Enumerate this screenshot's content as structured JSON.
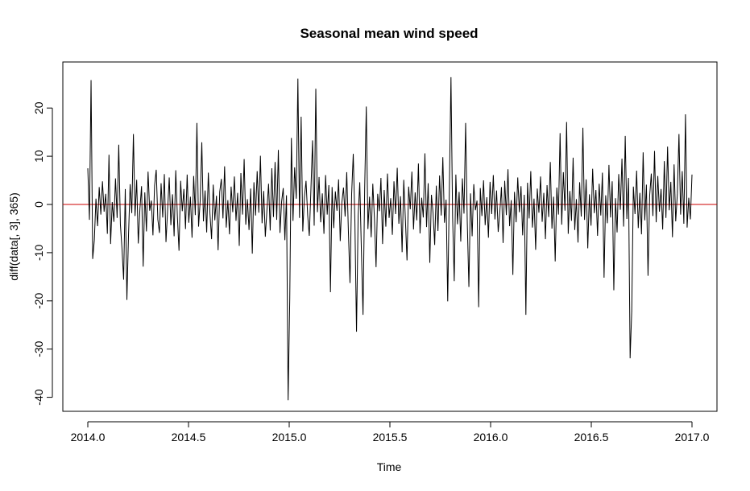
{
  "chart_data": {
    "type": "line",
    "title": "Seasonal mean wind speed",
    "xlabel": "Time",
    "ylabel": "diff(data[, 3], 365)",
    "xlim": [
      2014.0,
      2017.0
    ],
    "ylim": [
      -42,
      28
    ],
    "x_ticks": [
      "2014.0",
      "2014.5",
      "2015.0",
      "2015.5",
      "2016.0",
      "2016.5",
      "2017.0"
    ],
    "y_ticks": [
      "-40",
      "-30",
      "-20",
      "-10",
      "0",
      "10",
      "20"
    ],
    "grid": false,
    "legend": "none",
    "reference_line": {
      "y": 0,
      "color": "#cc0000"
    },
    "series": [
      {
        "color": "#000000",
        "sampling": "every 2nd day",
        "x_start": 2014.0,
        "x_end": 2017.0,
        "values": [
          7.5,
          -3.2,
          25.8,
          -11.3,
          -7.4,
          1.2,
          -4.5,
          3.6,
          -2.1,
          4.8,
          -1.5,
          2.2,
          -6.1,
          10.3,
          -8.2,
          0.5,
          -3.6,
          5.4,
          -2.8,
          12.4,
          -4.1,
          -9.2,
          -15.6,
          3.2,
          -19.8,
          -6.3,
          4.2,
          -1.8,
          14.6,
          -2.4,
          5.1,
          -8.1,
          -0.9,
          3.8,
          -12.9,
          2.5,
          -5.6,
          6.8,
          -1.3,
          0.8,
          -6.4,
          3.9,
          7.2,
          -3.1,
          -5.9,
          4.4,
          -2.7,
          6.3,
          -7.8,
          -1.2,
          5.6,
          -4.3,
          2.1,
          -6.6,
          7.1,
          -2.5,
          -9.6,
          4.9,
          -1.4,
          3.2,
          -5.1,
          6.2,
          -3.8,
          1.6,
          -6.9,
          5.9,
          -2.2,
          16.9,
          -4.6,
          0.7,
          12.9,
          -3.5,
          2.9,
          -5.8,
          6.6,
          -1.9,
          -7.2,
          4.1,
          -3.3,
          1.8,
          -9.5,
          2.6,
          5.3,
          -2.9,
          7.9,
          -4.8,
          0.9,
          -6.2,
          3.7,
          -1.6,
          5.8,
          -3.4,
          2.4,
          -8.6,
          6.5,
          -2.1,
          9.4,
          -4.2,
          1.1,
          -5.3,
          3.3,
          -10.2,
          4.6,
          -2.3,
          6.9,
          -1.7,
          10.1,
          -3.9,
          2.8,
          -6.7,
          -1.1,
          4.3,
          -5.4,
          7.5,
          -2.6,
          8.8,
          -3.2,
          11.3,
          -5.9,
          0.6,
          3.4,
          -7.4,
          1.9,
          -40.6,
          -19.7,
          13.8,
          -3.4,
          7.7,
          1.2,
          26.1,
          -2.8,
          18.2,
          -5.6,
          1.5,
          4.9,
          -2.2,
          -6.5,
          3.1,
          13.3,
          -4.4,
          24.0,
          -1.6,
          5.7,
          -3.7,
          2.3,
          -6.1,
          6.1,
          -2.1,
          4.0,
          -18.2,
          3.6,
          -4.9,
          2.7,
          -1.3,
          5.2,
          -7.6,
          0.4,
          3.5,
          -2.5,
          6.7,
          -5.5,
          -16.3,
          2.1,
          10.5,
          -3.6,
          -26.4,
          -2.4,
          4.6,
          -9.7,
          -22.9,
          3.2,
          20.3,
          -5.1,
          1.6,
          -6.8,
          4.3,
          -2.9,
          -13.0,
          2.2,
          -1.4,
          5.5,
          -8.2,
          3.0,
          -4.6,
          6.4,
          -2.8,
          1.3,
          -6.3,
          4.8,
          -2.0,
          7.6,
          -4.0,
          1.7,
          -9.9,
          5.1,
          -3.0,
          -11.6,
          3.7,
          -1.0,
          6.8,
          -5.2,
          2.5,
          -3.3,
          8.5,
          -6.0,
          1.4,
          -2.7,
          10.6,
          -4.7,
          4.4,
          -12.1,
          2.0,
          -1.8,
          -8.4,
          3.9,
          -5.5,
          6.0,
          -2.3,
          9.8,
          -3.8,
          1.0,
          -20.1,
          3.1,
          26.4,
          -2.6,
          -15.9,
          6.2,
          -4.1,
          2.6,
          -7.7,
          5.4,
          -1.9,
          16.9,
          -3.5,
          -17.1,
          2.3,
          -6.6,
          4.2,
          -1.2,
          0.8,
          -21.3,
          3.4,
          -2.4,
          5.0,
          -4.3,
          1.5,
          -6.9,
          4.7,
          -2.0,
          6.1,
          -3.1,
          2.9,
          -5.7,
          -1.5,
          3.6,
          -8.0,
          4.9,
          -2.2,
          7.3,
          -4.5,
          0.9,
          -14.6,
          2.6,
          -3.7,
          5.6,
          -1.6,
          3.8,
          -6.4,
          2.0,
          -22.9,
          4.5,
          -2.9,
          6.9,
          -4.8,
          1.2,
          -9.4,
          3.3,
          -1.7,
          5.8,
          -3.6,
          2.4,
          -7.2,
          4.0,
          -2.6,
          8.8,
          -5.0,
          1.6,
          -11.8,
          3.5,
          -2.1,
          14.8,
          -4.2,
          6.7,
          -1.3,
          17.1,
          -6.1,
          2.8,
          -3.4,
          9.7,
          -5.3,
          1.1,
          -7.9,
          4.6,
          -2.5,
          15.9,
          -3.2,
          5.2,
          -9.1,
          2.1,
          -4.4,
          7.4,
          -1.8,
          3.0,
          -6.5,
          4.3,
          -2.3,
          6.6,
          -15.2,
          1.9,
          -3.9,
          8.2,
          -2.7,
          4.8,
          -17.8,
          1.3,
          -5.8,
          6.3,
          -1.1,
          9.5,
          -4.6,
          14.2,
          -3.0,
          5.5,
          -31.9,
          -22.1,
          3.7,
          -2.0,
          7.0,
          -4.9,
          2.4,
          -6.2,
          10.8,
          -3.3,
          4.1,
          -14.8,
          1.8,
          6.4,
          -2.4,
          11.1,
          -3.7,
          5.9,
          -1.5,
          3.2,
          -5.2,
          9.0,
          -2.8,
          12.0,
          -1.2,
          4.7,
          -6.8,
          8.3,
          -3.5,
          2.2,
          14.6,
          -2.1,
          6.9,
          -4.0,
          18.7,
          -4.8,
          1.4,
          -3.1,
          6.2
        ]
      }
    ]
  }
}
